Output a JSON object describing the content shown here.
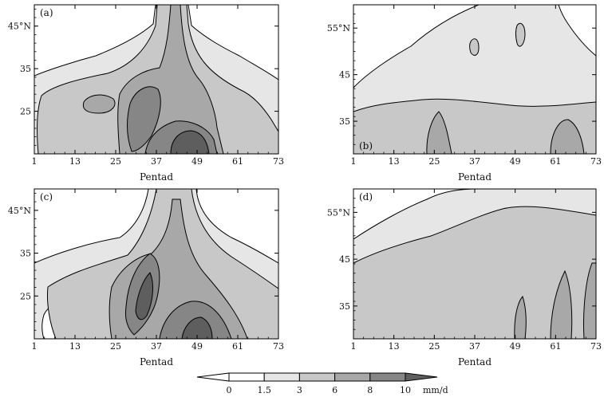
{
  "palette": {
    "levels": [
      "#ffffff",
      "#e6e6e6",
      "#c8c8c8",
      "#a8a8a8",
      "#868686",
      "#5e5e5e"
    ],
    "line": "#000000"
  },
  "chart_data": [
    {
      "type": "heatmap",
      "panel_label": "(a)",
      "xlabel": "Pentad",
      "x_ticks": [
        "1",
        "13",
        "25",
        "37",
        "49",
        "61",
        "73"
      ],
      "xlim": [
        1,
        73
      ],
      "y_ticks": [
        "45°N",
        "35",
        "25"
      ],
      "y_tick_values": [
        45,
        35,
        25
      ],
      "ylim": [
        15,
        50
      ],
      "description_values": {
        "precip_peak_mm_d": 10,
        "peak_pentad": 44,
        "peak_lat": 17
      }
    },
    {
      "type": "heatmap",
      "panel_label": "(b)",
      "xlabel": "Pentad",
      "x_ticks": [
        "1",
        "13",
        "25",
        "37",
        "49",
        "61",
        "73"
      ],
      "xlim": [
        1,
        73
      ],
      "y_ticks": [
        "55°N",
        "45",
        "35"
      ],
      "y_tick_values": [
        55,
        45,
        35
      ],
      "ylim": [
        28,
        60
      ]
    },
    {
      "type": "heatmap",
      "panel_label": "(c)",
      "xlabel": "Pentad",
      "x_ticks": [
        "1",
        "13",
        "25",
        "37",
        "49",
        "61",
        "73"
      ],
      "xlim": [
        1,
        73
      ],
      "y_ticks": [
        "45°N",
        "35",
        "25"
      ],
      "y_tick_values": [
        45,
        35,
        25
      ],
      "ylim": [
        15,
        50
      ]
    },
    {
      "type": "heatmap",
      "panel_label": "(d)",
      "xlabel": "Pentad",
      "x_ticks": [
        "1",
        "13",
        "25",
        "37",
        "49",
        "61",
        "73"
      ],
      "xlim": [
        1,
        73
      ],
      "y_ticks": [
        "55°N",
        "45",
        "35"
      ],
      "y_tick_values": [
        55,
        45,
        35
      ],
      "ylim": [
        28,
        60
      ]
    }
  ],
  "colorbar": {
    "levels": [
      "0",
      "1.5",
      "3",
      "6",
      "8",
      "10"
    ],
    "unit": "mm/d"
  }
}
